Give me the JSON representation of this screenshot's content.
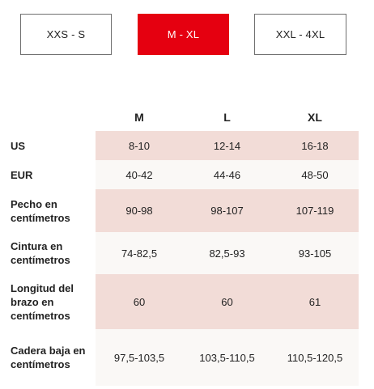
{
  "tabs": [
    {
      "label": "XXS - S",
      "active": false
    },
    {
      "label": "M - XL",
      "active": true
    },
    {
      "label": "XXL - 4XL",
      "active": false
    }
  ],
  "colors": {
    "accent": "#e50010",
    "shaded_row": "#f2dcd7",
    "plain_row": "#faf8f6"
  },
  "table": {
    "columns": [
      "M",
      "L",
      "XL"
    ],
    "rows": [
      {
        "label": "US",
        "values": [
          "8-10",
          "12-14",
          "16-18"
        ]
      },
      {
        "label": "EUR",
        "values": [
          "40-42",
          "44-46",
          "48-50"
        ]
      },
      {
        "label": "Pecho en centímetros",
        "values": [
          "90-98",
          "98-107",
          "107-119"
        ]
      },
      {
        "label": "Cintura en centímetros",
        "values": [
          "74-82,5",
          "82,5-93",
          "93-105"
        ]
      },
      {
        "label": "Longitud del brazo en centímetros",
        "values": [
          "60",
          "60",
          "61"
        ]
      },
      {
        "label": "Cadera baja en centímetros",
        "values": [
          "97,5-103,5",
          "103,5-110,5",
          "110,5-120,5"
        ]
      }
    ]
  }
}
